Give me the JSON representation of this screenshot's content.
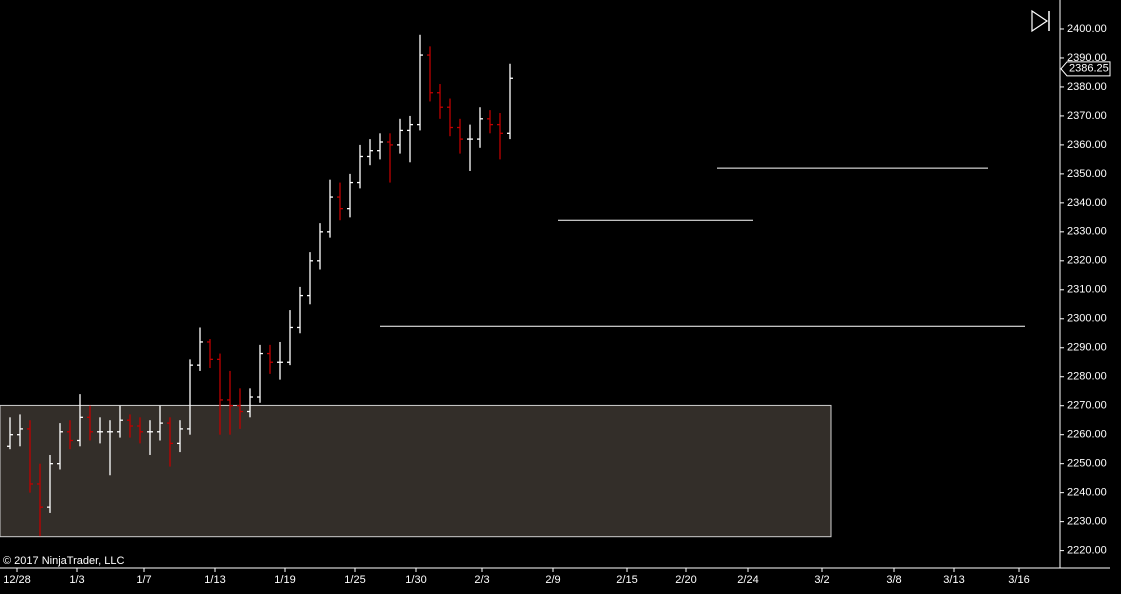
{
  "chart_data": {
    "type": "ohlc",
    "copyright": "© 2017 NinjaTrader, LLC",
    "up_color": "#ffffff",
    "down_color": "#c00000",
    "background": "#000000",
    "x": [
      0,
      1,
      2,
      3,
      4,
      5,
      6,
      7,
      8,
      9,
      10,
      11,
      12,
      13,
      14,
      15,
      16,
      17,
      18,
      19,
      20,
      21,
      22,
      23,
      24,
      25,
      26,
      27,
      28,
      29,
      30,
      31,
      32,
      33,
      34,
      35,
      36,
      37,
      38,
      39,
      40,
      41,
      42,
      43,
      44,
      45,
      46,
      47,
      48,
      49,
      50
    ],
    "open": [
      2256,
      2260,
      2262,
      2243,
      2235,
      2250,
      2261,
      2258,
      2266,
      2261,
      2261,
      2261,
      2265,
      2263,
      2261,
      2261,
      2264,
      2257,
      2262,
      2284,
      2292,
      2286,
      2272,
      2270,
      2268,
      2273,
      2288,
      2285,
      2285,
      2297,
      2308,
      2320,
      2330,
      2342,
      2338,
      2347,
      2356,
      2358,
      2361,
      2360,
      2365,
      2367,
      2391,
      2378,
      2373,
      2366,
      2362,
      2362,
      2369,
      2367,
      2364
    ],
    "high": [
      2266,
      2267,
      2265,
      2250,
      2253,
      2264,
      2265,
      2274,
      2270,
      2266,
      2265,
      2270,
      2267,
      2266,
      2265,
      2270,
      2266,
      2265,
      2286,
      2297,
      2293,
      2288,
      2282,
      2276,
      2276,
      2291,
      2291,
      2292,
      2303,
      2311,
      2323,
      2333,
      2348,
      2347,
      2350,
      2360,
      2362,
      2364,
      2364,
      2369,
      2370,
      2398,
      2394,
      2381,
      2376,
      2369,
      2367,
      2373,
      2372,
      2371,
      2388
    ],
    "low": [
      2255,
      2256,
      2240,
      2225,
      2233,
      2248,
      2255,
      2256,
      2258,
      2257,
      2246,
      2259,
      2259,
      2257,
      2253,
      2258,
      2249,
      2254,
      2260,
      2282,
      2283,
      2260,
      2260,
      2262,
      2266,
      2271,
      2281,
      2279,
      2284,
      2295,
      2305,
      2317,
      2328,
      2334,
      2335,
      2345,
      2353,
      2355,
      2347,
      2357,
      2354,
      2365,
      2375,
      2369,
      2363,
      2357,
      2351,
      2359,
      2364,
      2355,
      2362
    ],
    "close": [
      2260,
      2262,
      2243,
      2235,
      2250,
      2261,
      2258,
      2266,
      2261,
      2261,
      2261,
      2265,
      2263,
      2261,
      2261,
      2264,
      2257,
      2262,
      2284,
      2292,
      2286,
      2272,
      2270,
      2268,
      2273,
      2288,
      2285,
      2285,
      2297,
      2308,
      2320,
      2330,
      2342,
      2338,
      2347,
      2356,
      2358,
      2361,
      2360,
      2365,
      2367,
      2391,
      2378,
      2373,
      2366,
      2362,
      2362,
      2369,
      2367,
      2364,
      2383
    ],
    "last_price": 2386.25,
    "xlim": [
      -1,
      105
    ],
    "ylim": [
      2214,
      2410
    ],
    "xticks": [
      {
        "value": 0.7,
        "label": "12/28"
      },
      {
        "value": 6.7,
        "label": "1/3"
      },
      {
        "value": 13.4,
        "label": "1/7"
      },
      {
        "value": 20.5,
        "label": "1/13"
      },
      {
        "value": 27.5,
        "label": "1/19"
      },
      {
        "value": 34.5,
        "label": "1/25"
      },
      {
        "value": 40.6,
        "label": "1/30"
      },
      {
        "value": 47.2,
        "label": "2/3"
      },
      {
        "value": 54.3,
        "label": "2/9"
      },
      {
        "value": 61.7,
        "label": "2/15"
      },
      {
        "value": 67.6,
        "label": "2/20"
      },
      {
        "value": 73.8,
        "label": "2/24"
      },
      {
        "value": 81.2,
        "label": "3/2"
      },
      {
        "value": 88.4,
        "label": "3/8"
      },
      {
        "value": 94.4,
        "label": "3/13"
      },
      {
        "value": 100.9,
        "label": "3/16"
      }
    ],
    "yticks": [
      {
        "value": 2220,
        "label": "2220.00"
      },
      {
        "value": 2230,
        "label": "2230.00"
      },
      {
        "value": 2240,
        "label": "2240.00"
      },
      {
        "value": 2250,
        "label": "2250.00"
      },
      {
        "value": 2260,
        "label": "2260.00"
      },
      {
        "value": 2270,
        "label": "2270.00"
      },
      {
        "value": 2280,
        "label": "2280.00"
      },
      {
        "value": 2290,
        "label": "2290.00"
      },
      {
        "value": 2300,
        "label": "2300.00"
      },
      {
        "value": 2310,
        "label": "2310.00"
      },
      {
        "value": 2320,
        "label": "2320.00"
      },
      {
        "value": 2330,
        "label": "2330.00"
      },
      {
        "value": 2340,
        "label": "2340.00"
      },
      {
        "value": 2350,
        "label": "2350.00"
      },
      {
        "value": 2360,
        "label": "2360.00"
      },
      {
        "value": 2370,
        "label": "2370.00"
      },
      {
        "value": 2380,
        "label": "2380.00"
      },
      {
        "value": 2390,
        "label": "2390.00"
      },
      {
        "value": 2400,
        "label": "2400.00"
      }
    ],
    "hlines": [
      {
        "y": 2297.4,
        "x": [
          37,
          101.5
        ]
      },
      {
        "y": 2334,
        "x": [
          54.8,
          74.3
        ]
      },
      {
        "y": 2352,
        "x": [
          70.7,
          97.8
        ]
      }
    ],
    "zone": {
      "y": [
        2224.8,
        2270.1
      ],
      "x": [
        -1,
        82.1
      ],
      "color": "#332e29"
    }
  }
}
